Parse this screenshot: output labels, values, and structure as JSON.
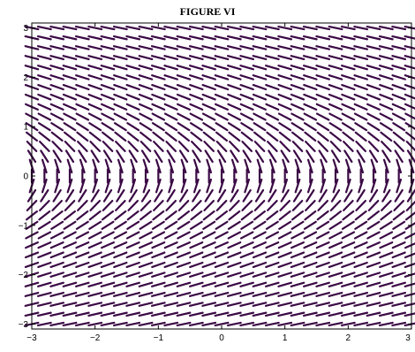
{
  "chart_data": {
    "type": "slope-field",
    "title": "FIGURE VI",
    "xlabel": "",
    "ylabel": "",
    "xlim": [
      -3,
      3
    ],
    "ylim": [
      -3.1,
      3.1
    ],
    "x_ticks": [
      -3,
      -2,
      -1,
      0,
      1,
      2,
      3
    ],
    "x_tick_labels": [
      "−3",
      "−2",
      "−1",
      "0",
      "1",
      "2",
      "3"
    ],
    "y_ticks": [
      -3,
      -2,
      -1,
      0,
      1,
      2,
      3
    ],
    "y_tick_labels": [
      "−3",
      "−2",
      "−1",
      "0",
      "1",
      "2",
      "3"
    ],
    "grid": false,
    "segment_color": "#3b0a45",
    "field": {
      "x_values": [
        -3,
        -2.8,
        -2.6,
        -2.4,
        -2.2,
        -2,
        -1.8,
        -1.6,
        -1.4,
        -1.2,
        -1,
        -0.8,
        -0.6,
        -0.4,
        -0.2,
        0,
        0.2,
        0.4,
        0.6,
        0.8,
        1,
        1.2,
        1.4,
        1.6,
        1.8,
        2,
        2.2,
        2.4,
        2.6,
        2.8,
        3
      ],
      "y_values": [
        -3,
        -2.8,
        -2.6,
        -2.4,
        -2.2,
        -2,
        -1.8,
        -1.6,
        -1.4,
        -1.2,
        -1,
        -0.8,
        -0.6,
        -0.4,
        -0.2,
        0,
        0.2,
        0.4,
        0.6,
        0.8,
        1,
        1.2,
        1.4,
        1.6,
        1.8,
        2,
        2.2,
        2.4,
        2.6,
        2.8,
        3
      ],
      "slope_function": "-0.8 / y"
    }
  }
}
